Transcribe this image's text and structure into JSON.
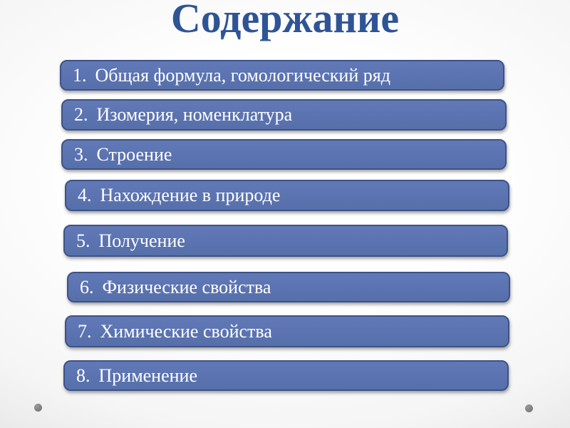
{
  "slide": {
    "title": "Содержание",
    "items": [
      {
        "number": "1.",
        "label": "Общая формула, гомологический ряд"
      },
      {
        "number": "2.",
        "label": "Изомерия, номенклатура"
      },
      {
        "number": "3.",
        "label": "Строение"
      },
      {
        "number": "4.",
        "label": "Нахождение в природе"
      },
      {
        "number": "5.",
        "label": "Получение"
      },
      {
        "number": "6.",
        "label": "Физические свойства"
      },
      {
        "number": "7.",
        "label": "Химические свойства"
      },
      {
        "number": "8.",
        "label": "Применение"
      }
    ],
    "colors": {
      "title_text": "#2F5496",
      "box_fill": "#5B73B0",
      "box_border": "#3D5286",
      "box_text": "#FFFFFF",
      "background_edge": "#D7D7D7",
      "background_center": "#FFFFFF",
      "dot": "#7D7D7D"
    }
  }
}
